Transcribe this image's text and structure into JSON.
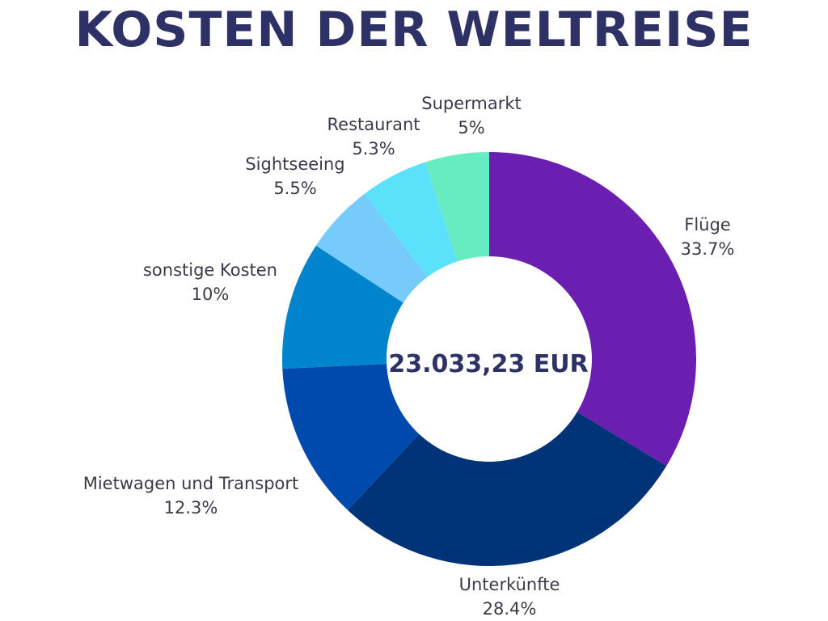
{
  "chart_data": {
    "type": "pie",
    "title": "KOSTEN DER WELTREISE",
    "center_label": "23.033,23 EUR",
    "slices": [
      {
        "name": "Flüge",
        "value": 33.7,
        "label": "33.7%",
        "color": "#6a1fb0"
      },
      {
        "name": "Unterkünfte",
        "value": 28.4,
        "label": "28.4%",
        "color": "#003377"
      },
      {
        "name": "Mietwagen und Transport",
        "value": 12.3,
        "label": "12.3%",
        "color": "#004aad"
      },
      {
        "name": "sonstige Kosten",
        "value": 10,
        "label": "10%",
        "color": "#0084cc"
      },
      {
        "name": "Sightseeing",
        "value": 5.5,
        "label": "5.5%",
        "color": "#77cbfb"
      },
      {
        "name": "Restaurant",
        "value": 5.3,
        "label": "5.3%",
        "color": "#5ce1fa"
      },
      {
        "name": "Supermarkt",
        "value": 5,
        "label": "5%",
        "color": "#67ecc2"
      }
    ]
  }
}
